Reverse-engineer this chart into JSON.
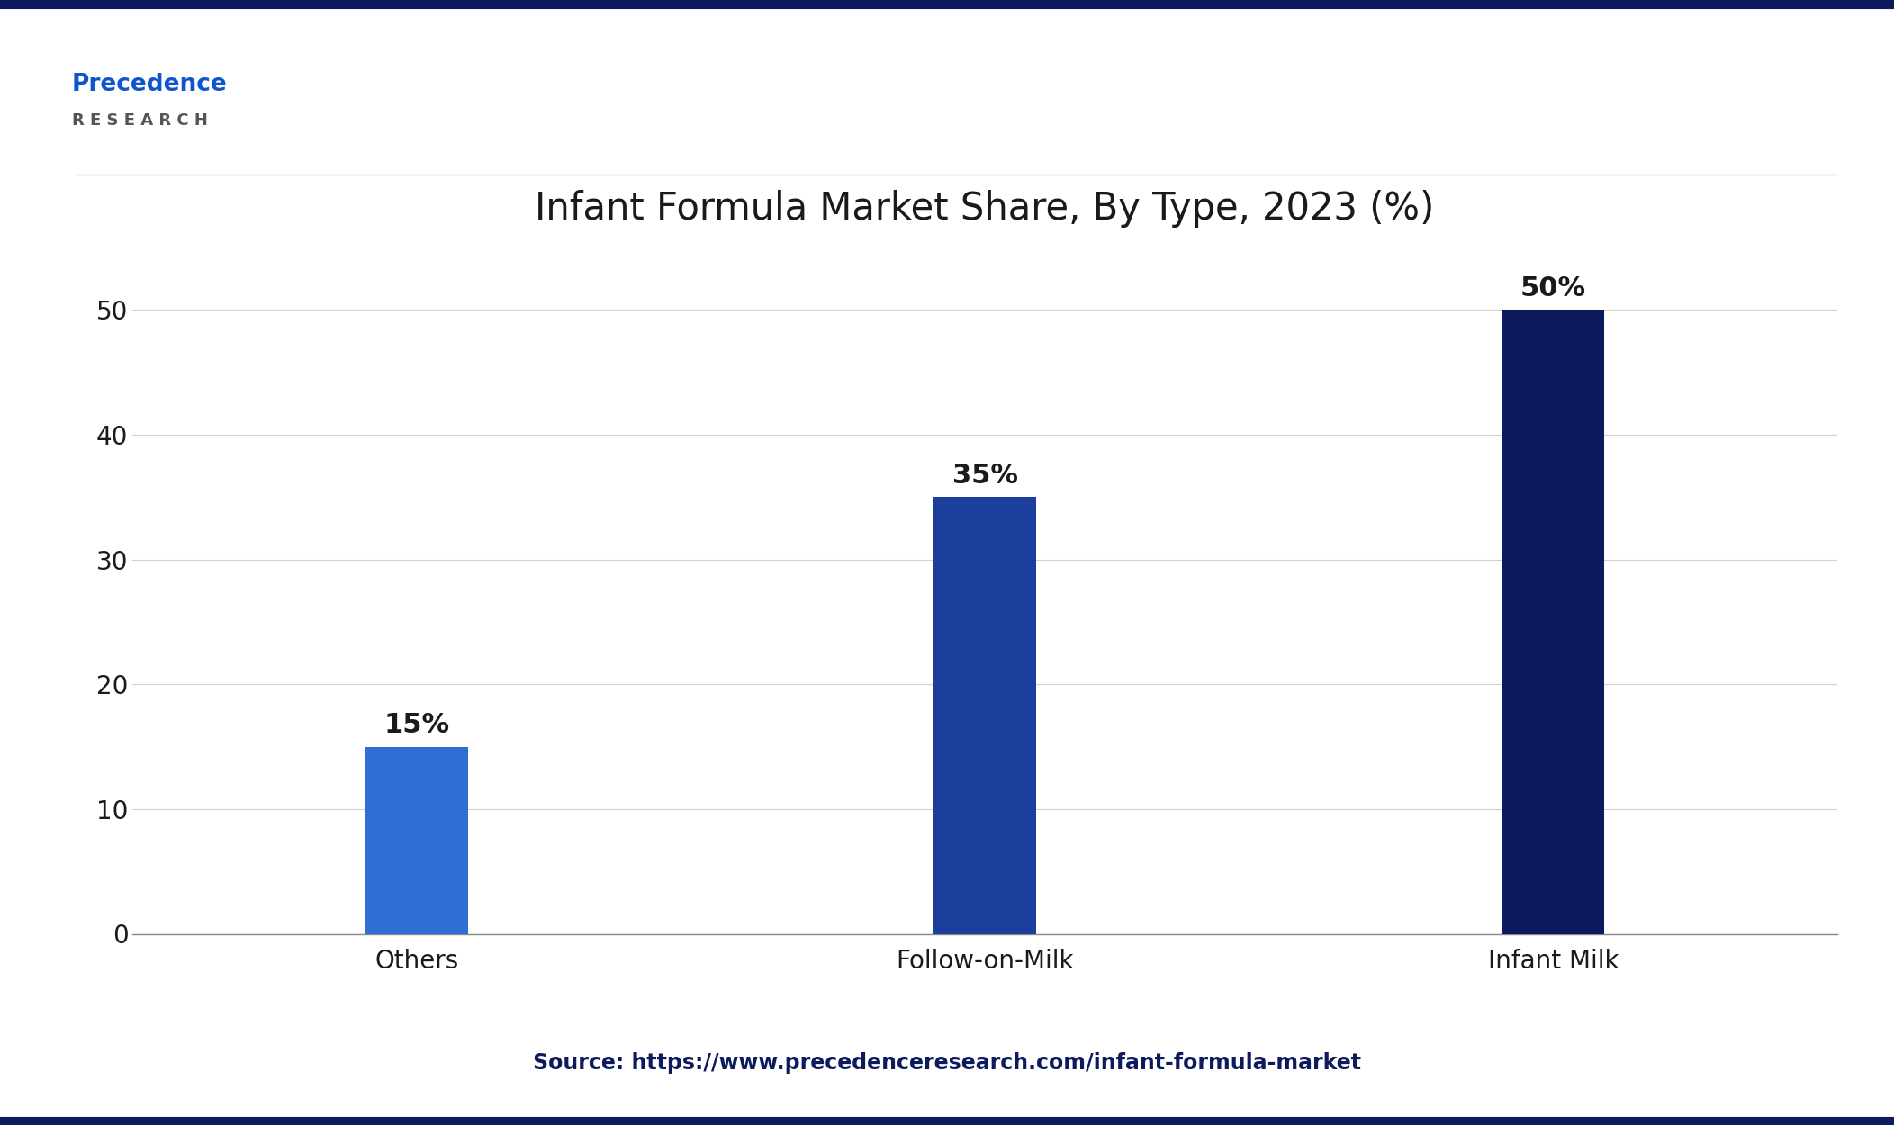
{
  "title": "Infant Formula Market Share, By Type, 2023 (%)",
  "categories": [
    "Others",
    "Follow-on-Milk",
    "Infant Milk"
  ],
  "values": [
    15,
    35,
    50
  ],
  "bar_colors": [
    "#2E6FD4",
    "#1C3F9E",
    "#0D1B5E"
  ],
  "value_labels": [
    "15%",
    "35%",
    "50%"
  ],
  "ylim": [
    0,
    55
  ],
  "yticks": [
    0,
    10,
    20,
    30,
    40,
    50
  ],
  "source_text": "Source: https://www.precedenceresearch.com/infant-formula-market",
  "bg_color": "#FFFFFF",
  "title_color": "#1a1a1a",
  "border_color": "#0D1B5E",
  "grid_color": "#d0d0d0",
  "source_color": "#0D1B5E",
  "title_fontsize": 30,
  "label_fontsize": 20,
  "tick_fontsize": 20,
  "value_fontsize": 22,
  "source_fontsize": 17,
  "bar_width": 0.18
}
